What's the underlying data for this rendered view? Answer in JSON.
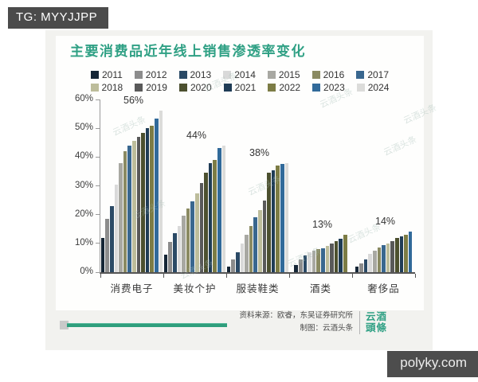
{
  "badges": {
    "tg": "TG: MYYJJPP",
    "site": "polyky.com"
  },
  "title": "主要消费品近年线上销售渗透率变化",
  "watermark": "云酒头条",
  "colors": {
    "title_green": "#2fa084",
    "badge_bg": "#4b4b4b",
    "underline_green": "#2f9e7c",
    "axis": "#555555"
  },
  "footer": {
    "source": "资料来源：欧睿，东吴证券研究所",
    "credit": "制图：云酒头条",
    "logo_line1": "云酒",
    "logo_line2": "頭條"
  },
  "chart_data": {
    "type": "bar",
    "title": "主要消费品近年线上销售渗透率变化",
    "xlabel": "",
    "ylabel": "",
    "ylim": [
      0,
      60
    ],
    "grid": false,
    "legend_position": "top",
    "y_ticks": [
      "0%",
      "10%",
      "20%",
      "30%",
      "40%",
      "50%",
      "60%"
    ],
    "categories": [
      "消费电子",
      "美妆个护",
      "服装鞋类",
      "酒类",
      "奢侈品"
    ],
    "category_labels": [
      "56%",
      "44%",
      "38%",
      "13%",
      "14%"
    ],
    "series": [
      {
        "name": "2011",
        "color": "#152636",
        "values": [
          12,
          6,
          2,
          2.5,
          2
        ]
      },
      {
        "name": "2012",
        "color": "#8c8c8c",
        "values": [
          18.5,
          10.5,
          4.5,
          4.3,
          3
        ]
      },
      {
        "name": "2013",
        "color": "#2b4a66",
        "values": [
          23,
          13.5,
          7,
          5.7,
          4.5
        ]
      },
      {
        "name": "2014",
        "color": "#d9d9d9",
        "values": [
          30.5,
          16,
          10,
          7,
          6.5
        ]
      },
      {
        "name": "2015",
        "color": "#a8a8a2",
        "values": [
          38,
          19.5,
          13,
          7.5,
          7.5
        ]
      },
      {
        "name": "2016",
        "color": "#8a8a62",
        "values": [
          42,
          22,
          16,
          8,
          8.5
        ]
      },
      {
        "name": "2017",
        "color": "#39678f",
        "values": [
          44,
          24.5,
          19,
          8.2,
          9.4
        ]
      },
      {
        "name": "2018",
        "color": "#bdbd9b",
        "values": [
          45.5,
          27.5,
          21.5,
          9,
          10
        ]
      },
      {
        "name": "2019",
        "color": "#595959",
        "values": [
          47,
          31,
          25,
          10,
          10.7
        ]
      },
      {
        "name": "2020",
        "color": "#4c502f",
        "values": [
          48.5,
          34.5,
          34.5,
          10.7,
          12
        ]
      },
      {
        "name": "2021",
        "color": "#1f3c56",
        "values": [
          50,
          38,
          35.5,
          11.6,
          12.5
        ]
      },
      {
        "name": "2022",
        "color": "#7c7c45",
        "values": [
          51,
          39,
          37,
          13,
          13
        ]
      },
      {
        "name": "2023",
        "color": "#316a9a",
        "values": [
          53.5,
          43,
          37.5,
          null,
          14
        ]
      },
      {
        "name": "2024",
        "color": "#dcdcda",
        "values": [
          56,
          44,
          38,
          null,
          null
        ]
      }
    ]
  }
}
